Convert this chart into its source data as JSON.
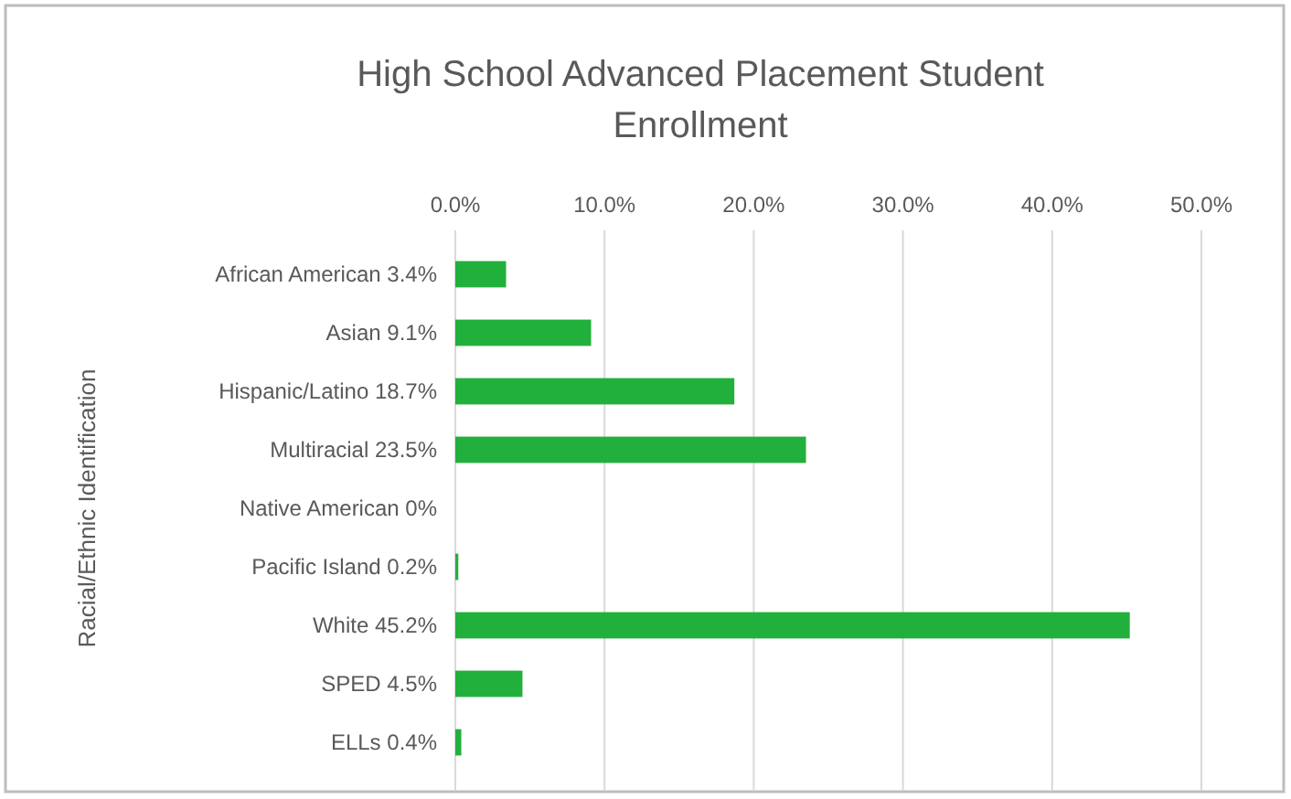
{
  "chart_data": {
    "type": "bar",
    "orientation": "horizontal",
    "title": "High School Advanced Placement Student Enrollment",
    "ylabel": "Racial/Ethnic Identification",
    "categories": [
      "African American 3.4%",
      "Asian 9.1%",
      "Hispanic/Latino 18.7%",
      "Multiracial 23.5%",
      "Native American 0%",
      "Pacific Island 0.2%",
      "White 45.2%",
      "SPED 4.5%",
      "ELLs 0.4%"
    ],
    "values": [
      3.4,
      9.1,
      18.7,
      23.5,
      0,
      0.2,
      45.2,
      4.5,
      0.4
    ],
    "color": "#22b03c",
    "xlim": [
      0,
      50
    ],
    "xticks": [
      {
        "value": 0,
        "label": "0.0%"
      },
      {
        "value": 10,
        "label": "10.0%"
      },
      {
        "value": 20,
        "label": "20.0%"
      },
      {
        "value": 30,
        "label": "30.0%"
      },
      {
        "value": 40,
        "label": "40.0%"
      },
      {
        "value": 50,
        "label": "50.0%"
      }
    ],
    "grid": "x"
  }
}
